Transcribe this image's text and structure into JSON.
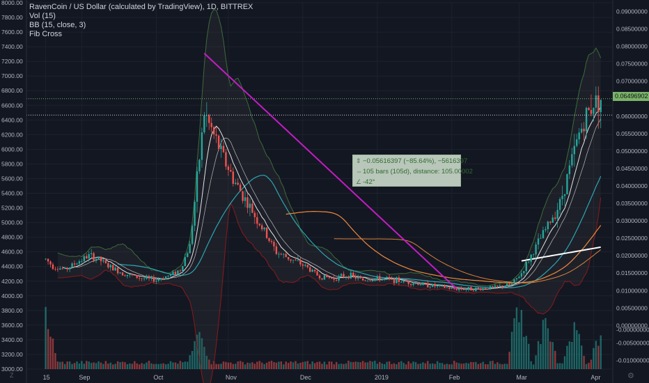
{
  "legend": {
    "title": "RavenCoin / US Dollar (calculated by TradingView), 1D, BITTREX",
    "studies": [
      "Vol (15)",
      "BB (15, close, 3)",
      "Fib Cross"
    ]
  },
  "measure": {
    "line1": "−0.05616397 (−85.64%), −5616397",
    "line2": "105 bars (105d), distance: 105.00002",
    "line3": "-42°"
  },
  "last_price": "0.06496902",
  "corner": {
    "bottom_left": "Z",
    "bottom_right": "⚙"
  },
  "colors": {
    "background": "#131722",
    "up": "#26a69a",
    "down": "#ef5350",
    "trendline": "#c51cc5",
    "last_price_tag": "#7ab36a"
  },
  "chart_data": {
    "type": "candlestick",
    "left_axis": {
      "ticks": [
        "8000.00",
        "7800.00",
        "7600.00",
        "7400.00",
        "7200.00",
        "7000.00",
        "6800.00",
        "6600.00",
        "6400.00",
        "6200.00",
        "6000.00",
        "5800.00",
        "5600.00",
        "5400.00",
        "5200.00",
        "5000.00",
        "4800.00",
        "4600.00",
        "4400.00",
        "4200.00",
        "4000.00",
        "3800.00",
        "3600.00",
        "3400.00",
        "3200.00",
        "3000.00"
      ],
      "range": [
        3000,
        8000
      ]
    },
    "right_axis": {
      "ticks": [
        "0.09000000",
        "0.08500000",
        "0.08000000",
        "0.07500000",
        "0.07000000",
        "0.06500000",
        "0.06000000",
        "0.05500000",
        "0.05000000",
        "0.04500000",
        "0.04000000",
        "0.03500000",
        "0.03000000",
        "0.02500000",
        "0.02000000",
        "0.01500000",
        "0.01000000",
        "0.00500000",
        "0.00000000",
        "-0.00000000",
        "-0.00500000",
        "-0.01000000"
      ],
      "range": [
        -0.0125,
        0.0925
      ]
    },
    "x_labels": [
      "15",
      "Sep",
      "Oct",
      "Nov",
      "Dec",
      "2019",
      "Feb",
      "Mar",
      "Apr"
    ],
    "x_label_days": [
      0,
      15,
      46,
      76,
      107,
      138,
      169,
      197,
      228
    ],
    "price_anchors": [
      [
        0,
        0.019
      ],
      [
        3,
        0.017
      ],
      [
        8,
        0.016
      ],
      [
        14,
        0.0185
      ],
      [
        18,
        0.02
      ],
      [
        22,
        0.019
      ],
      [
        26,
        0.017
      ],
      [
        32,
        0.015
      ],
      [
        40,
        0.0135
      ],
      [
        46,
        0.013
      ],
      [
        52,
        0.0145
      ],
      [
        56,
        0.016
      ],
      [
        60,
        0.023
      ],
      [
        64,
        0.048
      ],
      [
        66,
        0.061
      ],
      [
        69,
        0.056
      ],
      [
        74,
        0.048
      ],
      [
        78,
        0.042
      ],
      [
        84,
        0.035
      ],
      [
        90,
        0.028
      ],
      [
        96,
        0.021
      ],
      [
        102,
        0.019
      ],
      [
        108,
        0.017
      ],
      [
        114,
        0.014
      ],
      [
        120,
        0.0135
      ],
      [
        126,
        0.0145
      ],
      [
        132,
        0.013
      ],
      [
        140,
        0.0135
      ],
      [
        150,
        0.0125
      ],
      [
        160,
        0.0115
      ],
      [
        170,
        0.0105
      ],
      [
        180,
        0.0105
      ],
      [
        188,
        0.011
      ],
      [
        194,
        0.0118
      ],
      [
        198,
        0.015
      ],
      [
        202,
        0.02
      ],
      [
        206,
        0.025
      ],
      [
        210,
        0.03
      ],
      [
        214,
        0.035
      ],
      [
        218,
        0.045
      ],
      [
        222,
        0.055
      ],
      [
        225,
        0.06
      ],
      [
        228,
        0.064
      ],
      [
        231,
        0.065
      ]
    ],
    "trendline": {
      "start": [
        66,
        0.078
      ],
      "end": [
        171,
        0.0105
      ]
    },
    "horizontal_lines": [
      0.065,
      0.0603
    ],
    "volume_peaks": [
      [
        0,
        0.9
      ],
      [
        64,
        0.55
      ],
      [
        197,
        1.0
      ],
      [
        208,
        0.8
      ],
      [
        220,
        0.7
      ],
      [
        231,
        0.6
      ]
    ]
  }
}
